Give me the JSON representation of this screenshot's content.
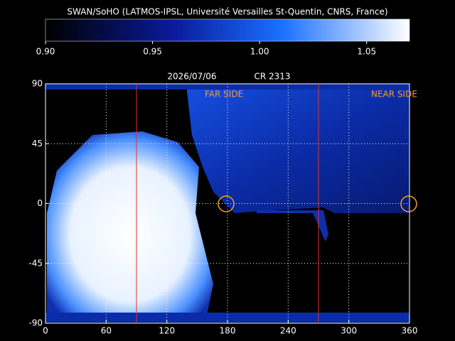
{
  "title": "SWAN/SoHO (LATMOS-IPSL, Université Versailles St-Quentin, CNRS, France)",
  "colorbar": {
    "range": [
      0.9,
      1.07
    ],
    "ticks": [
      {
        "value": 0.9,
        "label": "0.90"
      },
      {
        "value": 0.95,
        "label": "0.95"
      },
      {
        "value": 1.0,
        "label": "1.00"
      },
      {
        "value": 1.05,
        "label": "1.05"
      }
    ]
  },
  "date": "2026/07/06",
  "rotation": "CR 2313",
  "map": {
    "xlim": [
      0,
      360
    ],
    "ylim": [
      -90,
      90
    ],
    "xticks": [
      0,
      60,
      120,
      180,
      240,
      300,
      360
    ],
    "yticks": [
      -90,
      -45,
      0,
      45,
      90
    ],
    "far_side_label": "FAR SIDE",
    "near_side_label": "NEAR SIDE"
  }
}
